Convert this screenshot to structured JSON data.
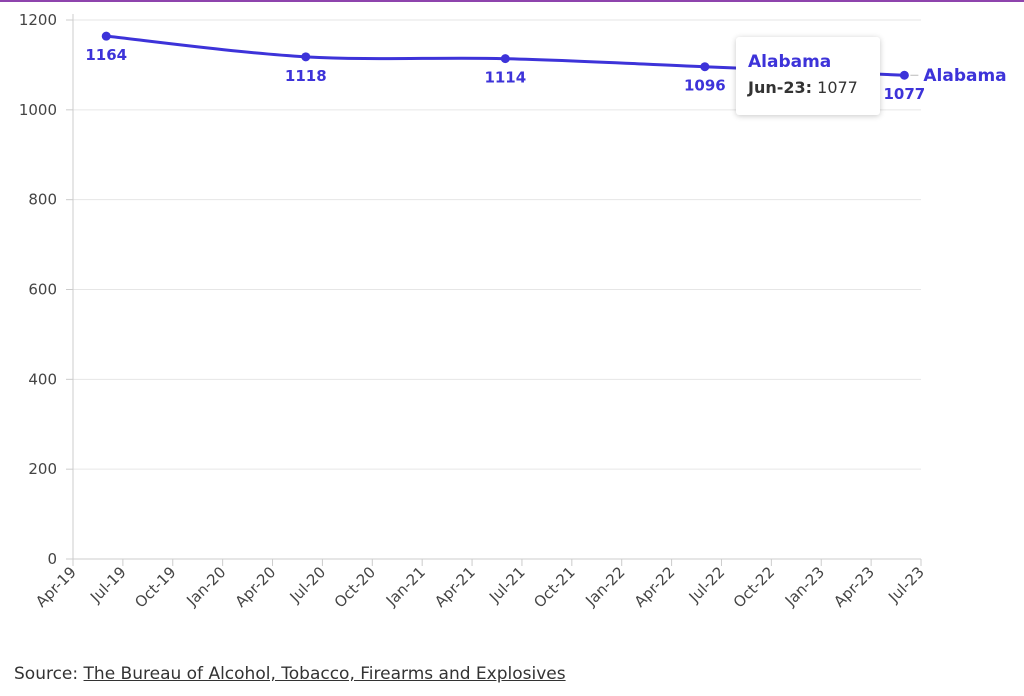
{
  "theme": {
    "accent": "#8e44ad",
    "series_color": "#3d33d9",
    "grid_color": "#e6e6e6"
  },
  "chart_data": {
    "type": "line",
    "x_tick_labels": [
      "Apr-19",
      "Jul-19",
      "Oct-19",
      "Jan-20",
      "Apr-20",
      "Jul-20",
      "Oct-20",
      "Jan-21",
      "Apr-21",
      "Jul-21",
      "Oct-21",
      "Jan-22",
      "Apr-22",
      "Jul-22",
      "Oct-22",
      "Jan-23",
      "Apr-23",
      "Jul-23"
    ],
    "y_ticks": [
      0,
      200,
      400,
      600,
      800,
      1000,
      1200
    ],
    "ylim": [
      0,
      1200
    ],
    "xlim": [
      "Apr-19",
      "Jul-23"
    ],
    "grid": true,
    "series": [
      {
        "name": "Alabama",
        "points": [
          {
            "x": "2019-06",
            "y": 1164,
            "label": "1164"
          },
          {
            "x": "2020-06",
            "y": 1118,
            "label": "1118"
          },
          {
            "x": "2021-06",
            "y": 1114,
            "label": "1114"
          },
          {
            "x": "2022-06",
            "y": 1096,
            "label": "1096"
          },
          {
            "x": "2023-06",
            "y": 1077,
            "label": "1077"
          }
        ]
      }
    ]
  },
  "tooltip": {
    "title": "Alabama",
    "key": "Jun-23:",
    "value": "1077"
  },
  "source": {
    "prefix": "Source: ",
    "link_text": "The Bureau of Alcohol, Tobacco, Firearms and Explosives"
  }
}
